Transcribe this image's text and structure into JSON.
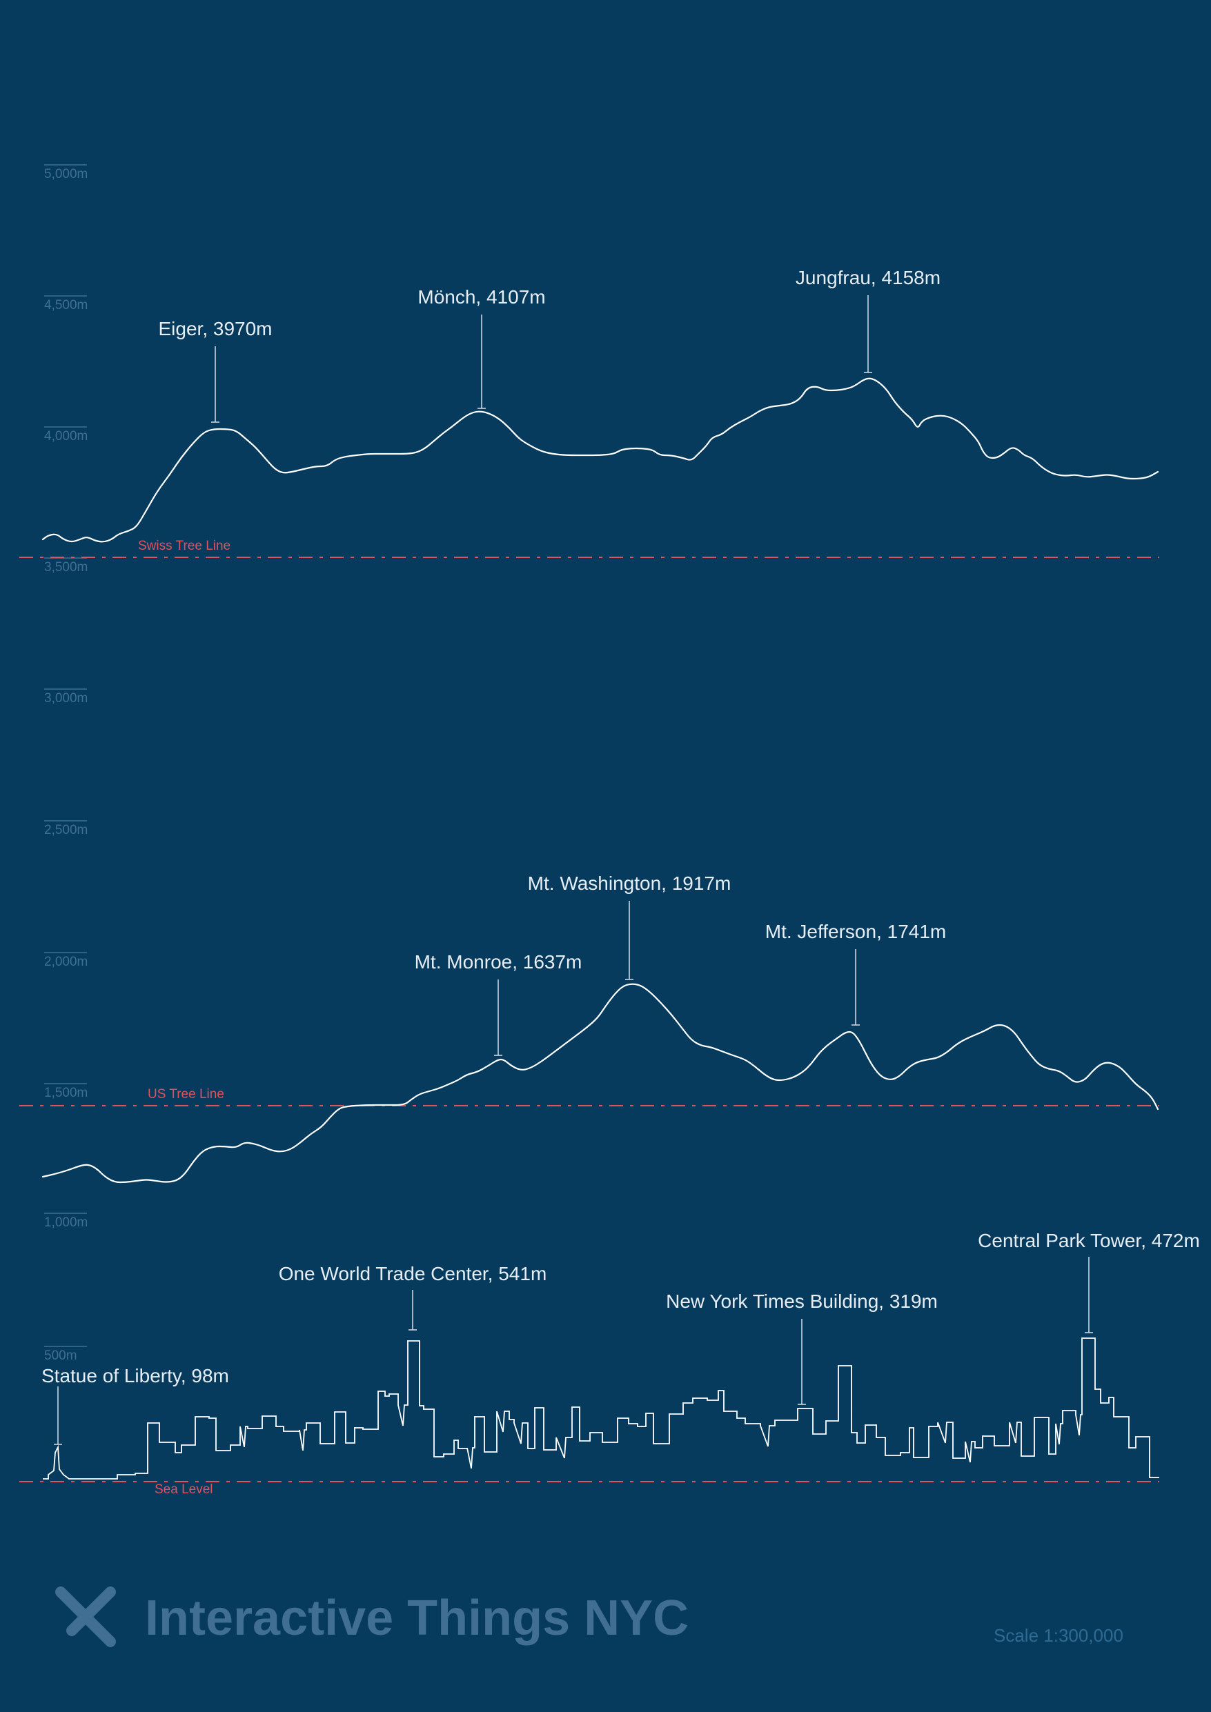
{
  "chart_data": {
    "type": "line",
    "ylabel": "",
    "ylim": [
      3500,
      5000
    ],
    "y_ticks": [
      "1,000m",
      "500m",
      "1,500m",
      "2,000m",
      "2,500m",
      "3,000m",
      "3,500m",
      "4,000m",
      "4,500m",
      "5,000m"
    ],
    "reference_lines": [
      {
        "name": "Swiss Tree Line",
        "value": 3500
      },
      {
        "name": "US Tree Line",
        "value": 1500
      },
      {
        "name": "Sea Level",
        "value": 0
      }
    ],
    "series": [
      {
        "peaks": [
          {
            "label": "Eiger, 3970m",
            "x": 0.15,
            "value": 3970
          },
          {
            "label": "Mönch, 4107m",
            "x": 0.39,
            "value": 4107
          },
          {
            "label": "Jungfrau, 4158m",
            "x": 0.74,
            "value": 4158
          }
        ]
      },
      {
        "peaks": [
          {
            "label": "Mt. Monroe, 1637m",
            "x": 0.41,
            "value": 1637
          },
          {
            "label": "Mt. Washington, 1917m",
            "x": 0.53,
            "value": 1917
          },
          {
            "label": "Mt. Jefferson, 1741m",
            "x": 0.73,
            "value": 1741
          }
        ]
      },
      {
        "peaks": [
          {
            "label": "Statue of Liberty, 98m",
            "x": 0.012,
            "value": 98
          },
          {
            "label": "One World Trade Center, 541m",
            "x": 0.33,
            "value": 541
          },
          {
            "label": "New York Times Building, 319m",
            "x": 0.68,
            "value": 319
          },
          {
            "label": "Central Park Tower, 472m",
            "x": 0.94,
            "value": 472
          }
        ]
      }
    ]
  },
  "footer": {
    "brand": "Interactive Things NYC",
    "scale": "Scale 1:300,000"
  },
  "colors": {
    "background": "#063b5e",
    "profile": "#ffffff",
    "reference": "#e0525c",
    "axis": "#3f6f92"
  }
}
